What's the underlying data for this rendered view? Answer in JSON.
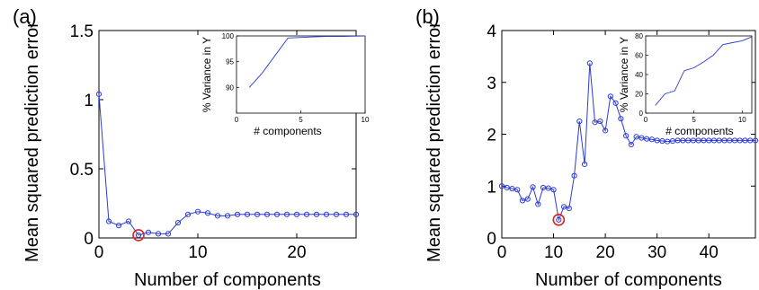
{
  "chart_data": [
    {
      "panel_label": "(a)",
      "type": "line",
      "xlabel": "Number of components",
      "ylabel": "Mean squared prediction error",
      "xlim": [
        0,
        26
      ],
      "ylim": [
        0,
        1.5
      ],
      "xticks": [
        0,
        10,
        20
      ],
      "yticks": [
        0,
        0.5,
        1,
        1.5
      ],
      "ytick_labels": [
        "0",
        "0.5",
        "1",
        "1.5"
      ],
      "grid": false,
      "series_color": "#2b3bd6",
      "highlight_color": "#e02020",
      "series": [
        {
          "x": [
            0,
            1,
            2,
            3,
            4,
            5,
            6,
            7,
            8,
            9,
            10,
            11,
            12,
            13,
            14,
            15,
            16,
            17,
            18,
            19,
            20,
            21,
            22,
            23,
            24,
            25,
            26
          ],
          "values": [
            1.04,
            0.12,
            0.09,
            0.12,
            0.02,
            0.04,
            0.03,
            0.03,
            0.11,
            0.17,
            0.19,
            0.18,
            0.16,
            0.16,
            0.17,
            0.17,
            0.17,
            0.17,
            0.17,
            0.17,
            0.17,
            0.17,
            0.17,
            0.17,
            0.17,
            0.17,
            0.17
          ]
        }
      ],
      "highlight": {
        "x": 4,
        "y": 0.02
      },
      "inset": {
        "type": "line",
        "xlabel": "# components",
        "ylabel": "% Variance in Y",
        "xlim": [
          0,
          10
        ],
        "ylim": [
          85,
          100
        ],
        "xticks": [
          0,
          5,
          10
        ],
        "yticks": [
          90,
          95,
          100
        ],
        "x": [
          1,
          2,
          3,
          4,
          5,
          6,
          7,
          8,
          9,
          10
        ],
        "values": [
          90,
          92.8,
          96.2,
          99.6,
          99.7,
          99.8,
          99.9,
          99.9,
          99.95,
          100
        ]
      }
    },
    {
      "panel_label": "(b)",
      "type": "line",
      "xlabel": "Number of components",
      "ylabel": "Mean squared prediction error",
      "xlim": [
        0,
        49
      ],
      "ylim": [
        0,
        4
      ],
      "xticks": [
        0,
        10,
        20,
        30,
        40
      ],
      "yticks": [
        0,
        1,
        2,
        3,
        4
      ],
      "ytick_labels": [
        "0",
        "1",
        "2",
        "3",
        "4"
      ],
      "grid": false,
      "series_color": "#2b3bd6",
      "highlight_color": "#e02020",
      "series": [
        {
          "x": [
            0,
            1,
            2,
            3,
            4,
            5,
            6,
            7,
            8,
            9,
            10,
            11,
            12,
            13,
            14,
            15,
            16,
            17,
            18,
            19,
            20,
            21,
            22,
            23,
            24,
            25,
            26,
            27,
            28,
            29,
            30,
            31,
            32,
            33,
            34,
            35,
            36,
            37,
            38,
            39,
            40,
            41,
            42,
            43,
            44,
            45,
            46,
            47,
            48,
            49
          ],
          "values": [
            1.0,
            0.97,
            0.95,
            0.93,
            0.72,
            0.75,
            0.98,
            0.65,
            0.97,
            0.96,
            0.93,
            0.35,
            0.6,
            0.57,
            1.2,
            2.25,
            1.42,
            3.37,
            2.23,
            2.25,
            2.07,
            2.73,
            2.6,
            2.3,
            1.97,
            1.8,
            1.95,
            1.93,
            1.91,
            1.9,
            1.88,
            1.87,
            1.86,
            1.87,
            1.88,
            1.88,
            1.88,
            1.88,
            1.88,
            1.88,
            1.88,
            1.88,
            1.88,
            1.88,
            1.88,
            1.88,
            1.88,
            1.88,
            1.88,
            1.88
          ]
        }
      ],
      "highlight": {
        "x": 11,
        "y": 0.35
      },
      "inset": {
        "type": "line",
        "xlabel": "# components",
        "ylabel": "% Variance in Y",
        "xlim": [
          0,
          11
        ],
        "ylim": [
          0,
          80
        ],
        "xticks": [
          0,
          5,
          10
        ],
        "yticks": [
          0,
          20,
          40,
          60,
          80
        ],
        "x": [
          1,
          2,
          3,
          4,
          5,
          6,
          7,
          8,
          9,
          10,
          11
        ],
        "values": [
          8,
          20,
          23,
          44,
          47,
          53,
          60,
          71,
          73,
          75,
          79
        ]
      }
    }
  ]
}
